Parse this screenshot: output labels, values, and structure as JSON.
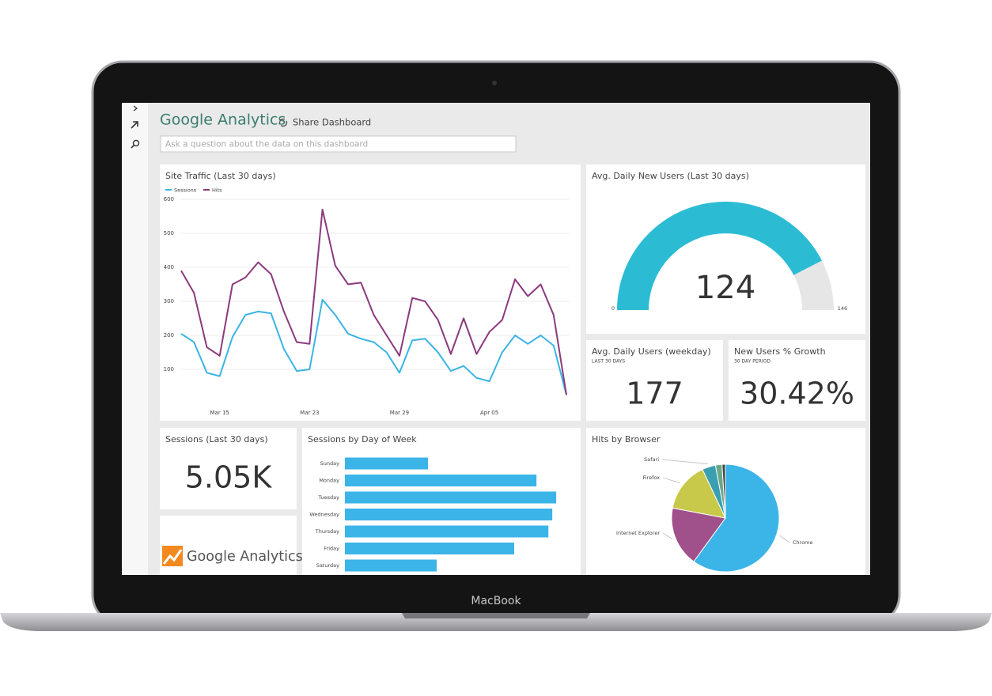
{
  "device_label": "MacBook",
  "header": {
    "title": "Google Analytics",
    "share_label": "Share Dashboard",
    "search_placeholder": "Ask a question about the data on this dashboard"
  },
  "tiles": {
    "site_traffic": {
      "type": "line",
      "title": "Site Traffic (Last 30 days)",
      "categories": [
        null,
        null,
        null,
        "Mar 15",
        null,
        null,
        null,
        null,
        null,
        null,
        "Mar 23",
        null,
        null,
        null,
        null,
        null,
        null,
        "Mar 29",
        null,
        null,
        null,
        null,
        null,
        null,
        "Apr 05",
        null,
        null,
        null,
        null,
        null,
        null
      ],
      "series": [
        {
          "name": "Sessions",
          "color": "#3bb4e5",
          "values": [
            205,
            180,
            90,
            80,
            195,
            260,
            270,
            265,
            160,
            95,
            100,
            305,
            260,
            205,
            190,
            180,
            150,
            90,
            185,
            190,
            150,
            95,
            110,
            75,
            65,
            150,
            200,
            175,
            200,
            170,
            25
          ]
        },
        {
          "name": "Hits",
          "color": "#8b3a7c",
          "values": [
            390,
            325,
            165,
            140,
            350,
            370,
            415,
            380,
            270,
            180,
            175,
            570,
            405,
            350,
            355,
            260,
            200,
            140,
            310,
            300,
            245,
            145,
            250,
            145,
            210,
            245,
            365,
            315,
            350,
            260,
            25
          ]
        }
      ],
      "ylim": [
        0,
        600
      ],
      "yticks": [
        100,
        200,
        300,
        400,
        500,
        600
      ],
      "grid": true
    },
    "new_users_gauge": {
      "type": "gauge",
      "title": "Avg. Daily New Users (Last 30 days)",
      "value": 124,
      "min": 0,
      "max": 146,
      "color": "#2bbcd4",
      "track_color": "#e6e6e6"
    },
    "daily_users": {
      "title": "Avg. Daily Users (weekday)",
      "subtitle": "LAST 30 DAYS",
      "value": "177"
    },
    "new_users_growth": {
      "title": "New Users % Growth",
      "subtitle": "30 DAY PERIOD",
      "value": "30.42%"
    },
    "sessions": {
      "title": "Sessions (Last 30 days)",
      "value": "5.05K"
    },
    "logo": {
      "text": "Google Analytics"
    },
    "sessions_by_day": {
      "type": "bar",
      "title": "Sessions by Day of Week",
      "categories": [
        "Sunday",
        "Monday",
        "Tuesday",
        "Wednesday",
        "Thursday",
        "Friday",
        "Saturday"
      ],
      "values": [
        362,
        835,
        921,
        904,
        887,
        738,
        400
      ],
      "color": "#3bb4e8",
      "xlim": [
        0,
        1000
      ]
    },
    "hits_by_browser": {
      "type": "pie",
      "title": "Hits by Browser",
      "categories": [
        "Chrome",
        "Internet Explorer",
        "Firefox",
        "Safari",
        null,
        null
      ],
      "values": [
        60,
        18,
        15,
        4,
        2,
        1
      ],
      "colors": [
        "#3bb4e8",
        "#a0508a",
        "#c8c84a",
        "#3a9fb0",
        "#6aa88a",
        "#444444"
      ]
    }
  }
}
